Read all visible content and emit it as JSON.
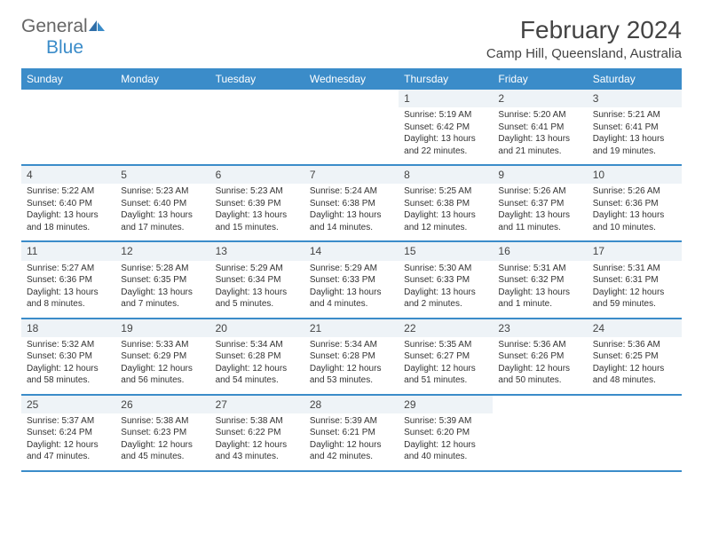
{
  "logo": {
    "general": "General",
    "blue": "Blue"
  },
  "header": {
    "month_title": "February 2024",
    "location": "Camp Hill, Queensland, Australia"
  },
  "calendar": {
    "day_names": [
      "Sunday",
      "Monday",
      "Tuesday",
      "Wednesday",
      "Thursday",
      "Friday",
      "Saturday"
    ],
    "header_bg": "#3b8cc9",
    "header_text_color": "#ffffff",
    "border_color": "#3b8cc9",
    "daynum_bg": "#eef3f7",
    "body_font_size": 10,
    "header_font_size": 12,
    "title_font_size": 28,
    "location_font_size": 15,
    "weeks": [
      [
        null,
        null,
        null,
        null,
        {
          "n": "1",
          "sunrise": "5:19 AM",
          "sunset": "6:42 PM",
          "daylight": "13 hours and 22 minutes."
        },
        {
          "n": "2",
          "sunrise": "5:20 AM",
          "sunset": "6:41 PM",
          "daylight": "13 hours and 21 minutes."
        },
        {
          "n": "3",
          "sunrise": "5:21 AM",
          "sunset": "6:41 PM",
          "daylight": "13 hours and 19 minutes."
        }
      ],
      [
        {
          "n": "4",
          "sunrise": "5:22 AM",
          "sunset": "6:40 PM",
          "daylight": "13 hours and 18 minutes."
        },
        {
          "n": "5",
          "sunrise": "5:23 AM",
          "sunset": "6:40 PM",
          "daylight": "13 hours and 17 minutes."
        },
        {
          "n": "6",
          "sunrise": "5:23 AM",
          "sunset": "6:39 PM",
          "daylight": "13 hours and 15 minutes."
        },
        {
          "n": "7",
          "sunrise": "5:24 AM",
          "sunset": "6:38 PM",
          "daylight": "13 hours and 14 minutes."
        },
        {
          "n": "8",
          "sunrise": "5:25 AM",
          "sunset": "6:38 PM",
          "daylight": "13 hours and 12 minutes."
        },
        {
          "n": "9",
          "sunrise": "5:26 AM",
          "sunset": "6:37 PM",
          "daylight": "13 hours and 11 minutes."
        },
        {
          "n": "10",
          "sunrise": "5:26 AM",
          "sunset": "6:36 PM",
          "daylight": "13 hours and 10 minutes."
        }
      ],
      [
        {
          "n": "11",
          "sunrise": "5:27 AM",
          "sunset": "6:36 PM",
          "daylight": "13 hours and 8 minutes."
        },
        {
          "n": "12",
          "sunrise": "5:28 AM",
          "sunset": "6:35 PM",
          "daylight": "13 hours and 7 minutes."
        },
        {
          "n": "13",
          "sunrise": "5:29 AM",
          "sunset": "6:34 PM",
          "daylight": "13 hours and 5 minutes."
        },
        {
          "n": "14",
          "sunrise": "5:29 AM",
          "sunset": "6:33 PM",
          "daylight": "13 hours and 4 minutes."
        },
        {
          "n": "15",
          "sunrise": "5:30 AM",
          "sunset": "6:33 PM",
          "daylight": "13 hours and 2 minutes."
        },
        {
          "n": "16",
          "sunrise": "5:31 AM",
          "sunset": "6:32 PM",
          "daylight": "13 hours and 1 minute."
        },
        {
          "n": "17",
          "sunrise": "5:31 AM",
          "sunset": "6:31 PM",
          "daylight": "12 hours and 59 minutes."
        }
      ],
      [
        {
          "n": "18",
          "sunrise": "5:32 AM",
          "sunset": "6:30 PM",
          "daylight": "12 hours and 58 minutes."
        },
        {
          "n": "19",
          "sunrise": "5:33 AM",
          "sunset": "6:29 PM",
          "daylight": "12 hours and 56 minutes."
        },
        {
          "n": "20",
          "sunrise": "5:34 AM",
          "sunset": "6:28 PM",
          "daylight": "12 hours and 54 minutes."
        },
        {
          "n": "21",
          "sunrise": "5:34 AM",
          "sunset": "6:28 PM",
          "daylight": "12 hours and 53 minutes."
        },
        {
          "n": "22",
          "sunrise": "5:35 AM",
          "sunset": "6:27 PM",
          "daylight": "12 hours and 51 minutes."
        },
        {
          "n": "23",
          "sunrise": "5:36 AM",
          "sunset": "6:26 PM",
          "daylight": "12 hours and 50 minutes."
        },
        {
          "n": "24",
          "sunrise": "5:36 AM",
          "sunset": "6:25 PM",
          "daylight": "12 hours and 48 minutes."
        }
      ],
      [
        {
          "n": "25",
          "sunrise": "5:37 AM",
          "sunset": "6:24 PM",
          "daylight": "12 hours and 47 minutes."
        },
        {
          "n": "26",
          "sunrise": "5:38 AM",
          "sunset": "6:23 PM",
          "daylight": "12 hours and 45 minutes."
        },
        {
          "n": "27",
          "sunrise": "5:38 AM",
          "sunset": "6:22 PM",
          "daylight": "12 hours and 43 minutes."
        },
        {
          "n": "28",
          "sunrise": "5:39 AM",
          "sunset": "6:21 PM",
          "daylight": "12 hours and 42 minutes."
        },
        {
          "n": "29",
          "sunrise": "5:39 AM",
          "sunset": "6:20 PM",
          "daylight": "12 hours and 40 minutes."
        },
        null,
        null
      ]
    ]
  }
}
